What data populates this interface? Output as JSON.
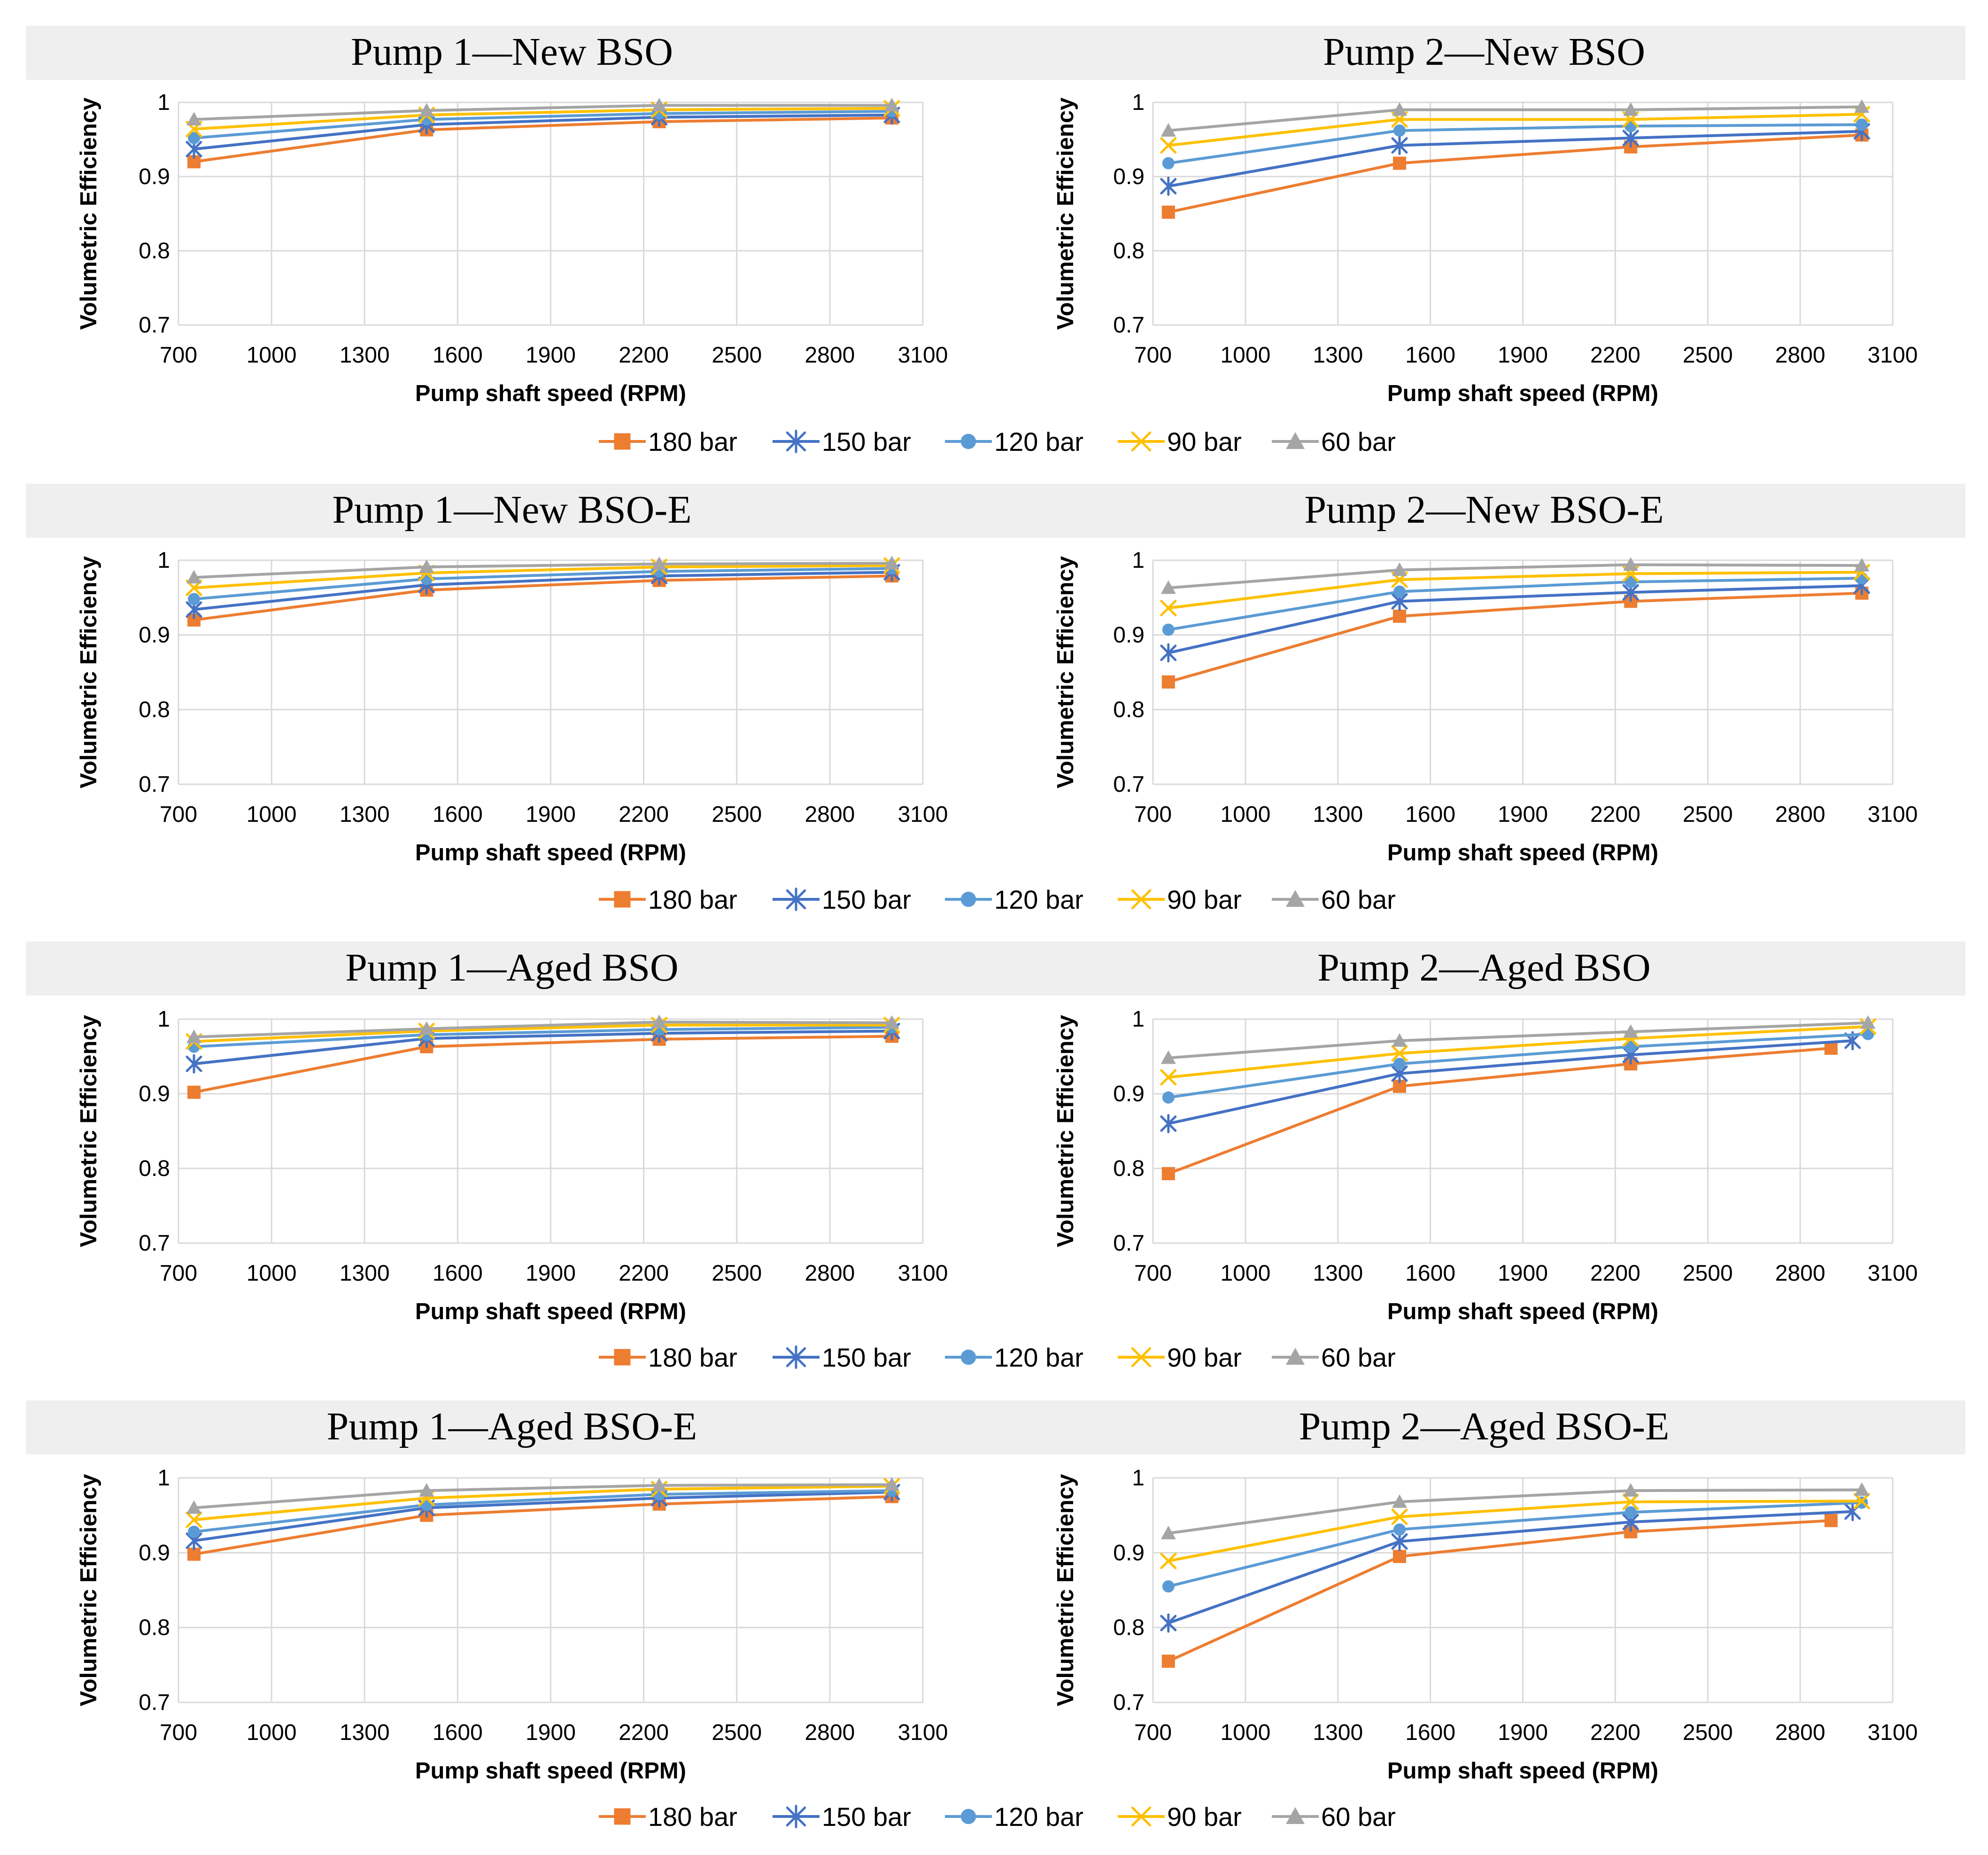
{
  "chart_data": {
    "type": "line",
    "series_colors": {
      "180 bar": "#ED7D31",
      "150 bar": "#4472C4",
      "120 bar": "#5B9BD5",
      "90 bar": "#FFC000",
      "60 bar": "#A5A5A5"
    },
    "series_markers": {
      "180 bar": "square",
      "150 bar": "asterisk",
      "120 bar": "circle",
      "90 bar": "x",
      "60 bar": "triangle"
    },
    "legend": [
      "180 bar",
      "150 bar",
      "120 bar",
      "90 bar",
      "60 bar"
    ],
    "xlabel": "Pump shaft speed (RPM)",
    "ylabel": "Volumetric Efficiency",
    "xlim": [
      700,
      3100
    ],
    "ylim": [
      0.7,
      1
    ],
    "xticks": [
      "700",
      "1000",
      "1300",
      "1600",
      "1900",
      "2200",
      "2500",
      "2800",
      "3100"
    ],
    "yticks": [
      "0.7",
      "0.8",
      "0.9",
      "1"
    ],
    "panels": [
      {
        "title": "Pump 1—New BSO",
        "series": [
          {
            "name": "180 bar",
            "points": [
              [
                750,
                0.92
              ],
              [
                1500,
                0.963
              ],
              [
                2250,
                0.974
              ],
              [
                3000,
                0.979
              ]
            ]
          },
          {
            "name": "150 bar",
            "points": [
              [
                750,
                0.937
              ],
              [
                1500,
                0.97
              ],
              [
                2250,
                0.98
              ],
              [
                3000,
                0.983
              ]
            ]
          },
          {
            "name": "120 bar",
            "points": [
              [
                750,
                0.952
              ],
              [
                1500,
                0.977
              ],
              [
                2250,
                0.985
              ],
              [
                3000,
                0.988
              ]
            ]
          },
          {
            "name": "90 bar",
            "points": [
              [
                750,
                0.964
              ],
              [
                1500,
                0.983
              ],
              [
                2250,
                0.99
              ],
              [
                3000,
                0.992
              ]
            ]
          },
          {
            "name": "60 bar",
            "points": [
              [
                750,
                0.977
              ],
              [
                1500,
                0.989
              ],
              [
                2250,
                0.996
              ],
              [
                3000,
                0.996
              ]
            ]
          }
        ]
      },
      {
        "title": "Pump 2—New BSO",
        "series": [
          {
            "name": "180 bar",
            "points": [
              [
                750,
                0.852
              ],
              [
                1500,
                0.918
              ],
              [
                2250,
                0.94
              ],
              [
                3000,
                0.956
              ]
            ]
          },
          {
            "name": "150 bar",
            "points": [
              [
                750,
                0.887
              ],
              [
                1500,
                0.942
              ],
              [
                2250,
                0.952
              ],
              [
                3000,
                0.961
              ]
            ]
          },
          {
            "name": "120 bar",
            "points": [
              [
                750,
                0.918
              ],
              [
                1500,
                0.962
              ],
              [
                2250,
                0.968
              ],
              [
                3000,
                0.97
              ]
            ]
          },
          {
            "name": "90 bar",
            "points": [
              [
                750,
                0.942
              ],
              [
                1500,
                0.977
              ],
              [
                2250,
                0.977
              ],
              [
                3000,
                0.984
              ]
            ]
          },
          {
            "name": "60 bar",
            "points": [
              [
                750,
                0.962
              ],
              [
                1500,
                0.99
              ],
              [
                2250,
                0.99
              ],
              [
                3000,
                0.994
              ]
            ]
          }
        ]
      },
      {
        "title": "Pump 1—New BSO-E",
        "series": [
          {
            "name": "180 bar",
            "points": [
              [
                750,
                0.92
              ],
              [
                1500,
                0.96
              ],
              [
                2250,
                0.973
              ],
              [
                3000,
                0.979
              ]
            ]
          },
          {
            "name": "150 bar",
            "points": [
              [
                750,
                0.934
              ],
              [
                1500,
                0.967
              ],
              [
                2250,
                0.979
              ],
              [
                3000,
                0.984
              ]
            ]
          },
          {
            "name": "120 bar",
            "points": [
              [
                750,
                0.948
              ],
              [
                1500,
                0.975
              ],
              [
                2250,
                0.985
              ],
              [
                3000,
                0.989
              ]
            ]
          },
          {
            "name": "90 bar",
            "points": [
              [
                750,
                0.963
              ],
              [
                1500,
                0.983
              ],
              [
                2250,
                0.991
              ],
              [
                3000,
                0.993
              ]
            ]
          },
          {
            "name": "60 bar",
            "points": [
              [
                750,
                0.977
              ],
              [
                1500,
                0.991
              ],
              [
                2250,
                0.995
              ],
              [
                3000,
                0.996
              ]
            ]
          }
        ]
      },
      {
        "title": "Pump 2—New BSO-E",
        "series": [
          {
            "name": "180 bar",
            "points": [
              [
                750,
                0.837
              ],
              [
                1500,
                0.925
              ],
              [
                2250,
                0.945
              ],
              [
                3000,
                0.956
              ]
            ]
          },
          {
            "name": "150 bar",
            "points": [
              [
                750,
                0.876
              ],
              [
                1500,
                0.945
              ],
              [
                2250,
                0.957
              ],
              [
                3000,
                0.966
              ]
            ]
          },
          {
            "name": "120 bar",
            "points": [
              [
                750,
                0.907
              ],
              [
                1500,
                0.958
              ],
              [
                2250,
                0.971
              ],
              [
                3000,
                0.976
              ]
            ]
          },
          {
            "name": "90 bar",
            "points": [
              [
                750,
                0.936
              ],
              [
                1500,
                0.974
              ],
              [
                2250,
                0.982
              ],
              [
                3000,
                0.984
              ]
            ]
          },
          {
            "name": "60 bar",
            "points": [
              [
                750,
                0.963
              ],
              [
                1500,
                0.987
              ],
              [
                2250,
                0.994
              ],
              [
                3000,
                0.993
              ]
            ]
          }
        ]
      },
      {
        "title": "Pump 1—Aged BSO",
        "series": [
          {
            "name": "180 bar",
            "points": [
              [
                750,
                0.902
              ],
              [
                1500,
                0.963
              ],
              [
                2250,
                0.973
              ],
              [
                3000,
                0.977
              ]
            ]
          },
          {
            "name": "150 bar",
            "points": [
              [
                750,
                0.94
              ],
              [
                1500,
                0.974
              ],
              [
                2250,
                0.981
              ],
              [
                3000,
                0.984
              ]
            ]
          },
          {
            "name": "120 bar",
            "points": [
              [
                750,
                0.963
              ],
              [
                1500,
                0.979
              ],
              [
                2250,
                0.986
              ],
              [
                3000,
                0.989
              ]
            ]
          },
          {
            "name": "90 bar",
            "points": [
              [
                750,
                0.97
              ],
              [
                1500,
                0.984
              ],
              [
                2250,
                0.992
              ],
              [
                3000,
                0.992
              ]
            ]
          },
          {
            "name": "60 bar",
            "points": [
              [
                750,
                0.976
              ],
              [
                1500,
                0.987
              ],
              [
                2250,
                0.996
              ],
              [
                3000,
                0.995
              ]
            ]
          }
        ]
      },
      {
        "title": "Pump 2—Aged BSO",
        "series": [
          {
            "name": "180 bar",
            "points": [
              [
                750,
                0.793
              ],
              [
                1500,
                0.91
              ],
              [
                2250,
                0.94
              ],
              [
                2900,
                0.961
              ]
            ]
          },
          {
            "name": "150 bar",
            "points": [
              [
                750,
                0.86
              ],
              [
                1500,
                0.927
              ],
              [
                2250,
                0.952
              ],
              [
                2970,
                0.971
              ]
            ]
          },
          {
            "name": "120 bar",
            "points": [
              [
                750,
                0.895
              ],
              [
                1500,
                0.94
              ],
              [
                2250,
                0.963
              ],
              [
                3020,
                0.98
              ]
            ]
          },
          {
            "name": "90 bar",
            "points": [
              [
                750,
                0.922
              ],
              [
                1500,
                0.954
              ],
              [
                2250,
                0.974
              ],
              [
                3020,
                0.99
              ]
            ]
          },
          {
            "name": "60 bar",
            "points": [
              [
                750,
                0.948
              ],
              [
                1500,
                0.971
              ],
              [
                2250,
                0.983
              ],
              [
                3020,
                0.995
              ]
            ]
          }
        ]
      },
      {
        "title": "Pump 1—Aged BSO-E",
        "series": [
          {
            "name": "180 bar",
            "points": [
              [
                750,
                0.898
              ],
              [
                1500,
                0.95
              ],
              [
                2250,
                0.965
              ],
              [
                3000,
                0.975
              ]
            ]
          },
          {
            "name": "150 bar",
            "points": [
              [
                750,
                0.916
              ],
              [
                1500,
                0.96
              ],
              [
                2250,
                0.973
              ],
              [
                3000,
                0.981
              ]
            ]
          },
          {
            "name": "120 bar",
            "points": [
              [
                750,
                0.928
              ],
              [
                1500,
                0.964
              ],
              [
                2250,
                0.978
              ],
              [
                3000,
                0.983
              ]
            ]
          },
          {
            "name": "90 bar",
            "points": [
              [
                750,
                0.944
              ],
              [
                1500,
                0.973
              ],
              [
                2250,
                0.985
              ],
              [
                3000,
                0.989
              ]
            ]
          },
          {
            "name": "60 bar",
            "points": [
              [
                750,
                0.96
              ],
              [
                1500,
                0.983
              ],
              [
                2250,
                0.99
              ],
              [
                3000,
                0.991
              ]
            ]
          }
        ]
      },
      {
        "title": "Pump 2—Aged BSO-E",
        "series": [
          {
            "name": "180 bar",
            "points": [
              [
                750,
                0.755
              ],
              [
                1500,
                0.895
              ],
              [
                2250,
                0.928
              ],
              [
                2900,
                0.943
              ]
            ]
          },
          {
            "name": "150 bar",
            "points": [
              [
                750,
                0.806
              ],
              [
                1500,
                0.915
              ],
              [
                2250,
                0.941
              ],
              [
                2970,
                0.955
              ]
            ]
          },
          {
            "name": "120 bar",
            "points": [
              [
                750,
                0.855
              ],
              [
                1500,
                0.931
              ],
              [
                2250,
                0.954
              ],
              [
                3000,
                0.967
              ]
            ]
          },
          {
            "name": "90 bar",
            "points": [
              [
                750,
                0.889
              ],
              [
                1500,
                0.948
              ],
              [
                2250,
                0.968
              ],
              [
                3000,
                0.969
              ]
            ]
          },
          {
            "name": "60 bar",
            "points": [
              [
                750,
                0.926
              ],
              [
                1500,
                0.968
              ],
              [
                2250,
                0.983
              ],
              [
                3000,
                0.984
              ]
            ]
          }
        ]
      }
    ]
  }
}
